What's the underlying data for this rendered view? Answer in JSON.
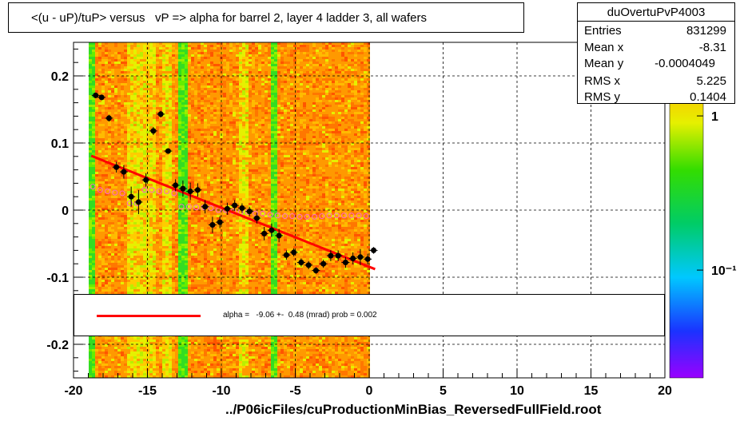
{
  "title": "<(u - uP)/tuP> versus   vP => alpha for barrel 2, layer 4 ladder 3, all wafers",
  "stats": {
    "name": "duOvertuPvP4003",
    "rows": [
      {
        "label": "Entries",
        "value": "831299"
      },
      {
        "label": "Mean x",
        "value": "-8.31"
      },
      {
        "label": "Mean y",
        "value": "-0.0004049"
      },
      {
        "label": "RMS x",
        "value": "5.225"
      },
      {
        "label": "RMS y",
        "value": "0.1404"
      }
    ]
  },
  "xaxis_title": "../P06icFiles/cuProductionMinBias_ReversedFullField.root",
  "legend": {
    "text": "alpha =   -9.06 +-  0.48 (mrad) prob = 0.002",
    "line_color": "#ff0000"
  },
  "colors": {
    "fit": "#ff0000",
    "points": "#000000",
    "open_markers": "#ff66cc"
  },
  "chart_data": {
    "type": "scatter",
    "xlim": [
      -20,
      20
    ],
    "ylim": [
      -0.25,
      0.25
    ],
    "xticks": [
      -20,
      -15,
      -10,
      -5,
      0,
      5,
      10,
      15,
      20
    ],
    "xtick_labels": [
      "-20",
      "-15",
      "-10",
      "-5",
      "0",
      "5",
      "10",
      "15",
      "20"
    ],
    "yticks": [
      -0.2,
      -0.1,
      0,
      0.1,
      0.2
    ],
    "ytick_labels": [
      "-0.2",
      "-0.1",
      "0",
      "0.1",
      "0.2"
    ],
    "grid": true,
    "heatmap_x_range": [
      -19,
      0
    ],
    "colorbar": {
      "tick_labels": [
        "1",
        "10⁻¹"
      ],
      "tick_values": [
        1,
        0.1
      ],
      "range": [
        0.02,
        3
      ]
    },
    "fit_line": {
      "x": [
        -18.8,
        0.4
      ],
      "y": [
        0.081,
        -0.088
      ]
    },
    "profile_points": {
      "x": [
        -18.5,
        -18.1,
        -17.6,
        -17.1,
        -16.6,
        -16.1,
        -15.6,
        -15.1,
        -14.6,
        -14.1,
        -13.6,
        -13.1,
        -12.6,
        -12.1,
        -11.6,
        -11.1,
        -10.6,
        -10.1,
        -9.6,
        -9.1,
        -8.6,
        -8.1,
        -7.6,
        -7.1,
        -6.6,
        -6.1,
        -5.6,
        -5.1,
        -4.6,
        -4.1,
        -3.6,
        -3.1,
        -2.6,
        -2.1,
        -1.6,
        -1.1,
        -0.6,
        -0.1,
        0.3
      ],
      "y": [
        0.171,
        0.168,
        0.137,
        0.064,
        0.057,
        0.02,
        0.012,
        0.045,
        0.118,
        0.143,
        0.088,
        0.037,
        0.032,
        0.028,
        0.03,
        0.005,
        -0.022,
        -0.018,
        0.002,
        0.007,
        0.003,
        -0.002,
        -0.012,
        -0.035,
        -0.03,
        -0.038,
        -0.067,
        -0.063,
        -0.078,
        -0.082,
        -0.09,
        -0.08,
        -0.068,
        -0.068,
        -0.078,
        -0.072,
        -0.07,
        -0.073,
        -0.06
      ],
      "yerr": [
        0.004,
        0.004,
        0.005,
        0.008,
        0.01,
        0.015,
        0.018,
        0.01,
        0.006,
        0.005,
        0.004,
        0.009,
        0.012,
        0.013,
        0.01,
        0.01,
        0.012,
        0.009,
        0.009,
        0.008,
        0.007,
        0.007,
        0.008,
        0.01,
        0.01,
        0.01,
        0.007,
        0.006,
        0.006,
        0.006,
        0.005,
        0.006,
        0.008,
        0.008,
        0.008,
        0.009,
        0.012,
        0.008,
        0.005
      ]
    },
    "open_markers": {
      "x": [
        -18.7,
        -18.2,
        -17.7,
        -17.2,
        -16.7,
        -16.2,
        -15.7,
        -15.2,
        -14.7,
        -14.2,
        -13.7,
        -13.2,
        -12.7,
        -12.2,
        -11.7,
        -11.2,
        -10.7,
        -10.2,
        -9.7,
        -9.2,
        -8.7,
        -8.2,
        -7.7,
        -7.2,
        -6.7,
        -6.2,
        -5.7,
        -5.2,
        -4.7,
        -4.2,
        -3.7,
        -3.2,
        -2.7,
        -2.2,
        -1.7,
        -1.2,
        -0.7,
        -0.2
      ],
      "y": [
        0.035,
        0.03,
        0.028,
        0.026,
        0.025,
        0.01,
        0.01,
        0.03,
        0.03,
        0.028,
        0.028,
        0.025,
        0.005,
        0.005,
        0.004,
        0.004,
        0.003,
        0.0,
        0.0,
        -0.002,
        -0.003,
        -0.003,
        -0.005,
        -0.005,
        -0.007,
        -0.008,
        -0.009,
        -0.009,
        -0.01,
        -0.01,
        -0.01,
        -0.009,
        -0.008,
        -0.008,
        -0.008,
        -0.008,
        -0.008,
        -0.009
      ]
    }
  }
}
